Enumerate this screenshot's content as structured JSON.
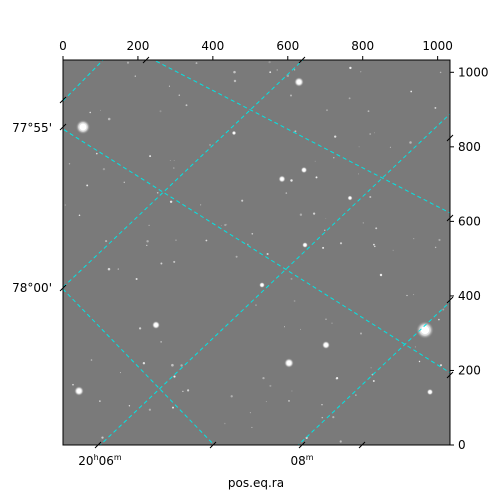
{
  "image": {
    "pixel_axes": {
      "top_ticks": [
        "0",
        "200",
        "400",
        "600",
        "800",
        "1000"
      ],
      "top_tick_values": [
        0,
        200,
        400,
        600,
        800,
        1000
      ],
      "right_ticks": [
        "0",
        "200",
        "400",
        "600",
        "800",
        "1000"
      ],
      "right_tick_values": [
        0,
        200,
        400,
        600,
        800,
        1000
      ],
      "x_range": [
        0,
        1033
      ],
      "y_range": [
        0,
        1033
      ]
    },
    "world_axes": {
      "dec_labels": [
        "77°55'",
        "78°00'"
      ],
      "ra_labels": [
        {
          "h": "20",
          "hsup": "h",
          "m": "06",
          "msup": "m"
        },
        {
          "h": "",
          "hsup": "",
          "m": "08",
          "msup": "m"
        }
      ],
      "xlabel": "pos.eq.ra"
    },
    "grid_color": "#00e5e5",
    "background_gray": "#7a7a7a"
  }
}
